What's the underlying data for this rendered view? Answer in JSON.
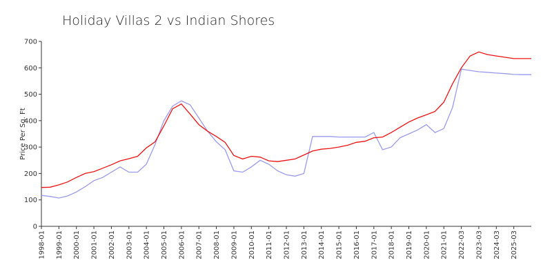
{
  "chart_data": {
    "type": "line",
    "title": "Holiday Villas 2 vs Indian Shores",
    "y_label": "Price Per Sq. Ft",
    "categories": [
      "1998-01",
      null,
      "1999-01",
      null,
      "2000-01",
      null,
      "2001-01",
      null,
      "2002-01",
      null,
      "2003-01",
      null,
      "2004-01",
      null,
      "2005-01",
      null,
      "2006-01",
      null,
      "2007-01",
      null,
      "2008-01",
      null,
      "2009-01",
      null,
      "2010-01",
      null,
      "2011-01",
      null,
      "2012-01",
      null,
      "2013-01",
      null,
      "2014-01",
      null,
      "2015-01",
      null,
      "2016-01",
      null,
      "2017-01",
      null,
      "2018-01",
      null,
      "2019-01",
      null,
      "2020-01",
      null,
      "2021-01",
      null,
      "2022-03",
      null,
      "2023-03",
      null,
      "2024-03",
      null,
      "2025-03",
      null,
      null
    ],
    "series": [
      {
        "color": "#ee1111",
        "values": [
          147,
          148,
          157,
          168,
          185,
          200,
          207,
          220,
          233,
          248,
          256,
          265,
          297,
          320,
          380,
          445,
          463,
          425,
          385,
          360,
          340,
          318,
          268,
          255,
          265,
          262,
          248,
          245,
          250,
          255,
          270,
          285,
          292,
          295,
          300,
          307,
          318,
          322,
          335,
          338,
          355,
          375,
          395,
          410,
          422,
          435,
          470,
          540,
          600,
          645,
          660,
          650,
          645,
          640,
          635,
          635,
          635
        ]
      },
      {
        "color": "#9999ee",
        "values": [
          117,
          113,
          107,
          115,
          130,
          150,
          173,
          185,
          205,
          225,
          205,
          205,
          235,
          310,
          400,
          455,
          475,
          460,
          410,
          360,
          320,
          290,
          210,
          205,
          225,
          250,
          235,
          210,
          195,
          190,
          200,
          340,
          340,
          340,
          338,
          338,
          338,
          338,
          355,
          290,
          300,
          335,
          350,
          365,
          385,
          355,
          370,
          450,
          595,
          590,
          585,
          583,
          580,
          578,
          575,
          574,
          574
        ]
      }
    ],
    "ylim": [
      0,
      700
    ],
    "yticks": [
      0,
      100,
      200,
      300,
      400,
      500,
      600,
      700
    ]
  }
}
